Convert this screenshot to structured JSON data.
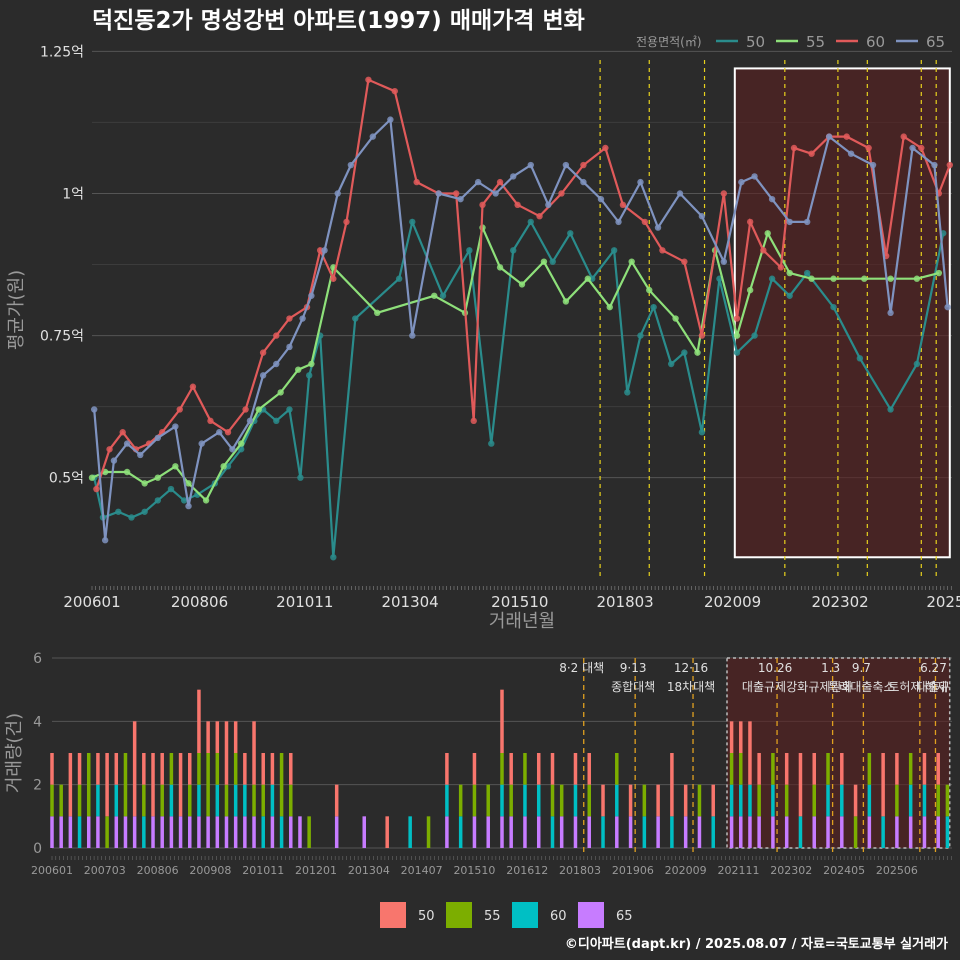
{
  "colors": {
    "bg": "#2b2b2b",
    "grid": "#555555",
    "minorgrid": "#3c3c3c",
    "s50": "#2a8c8c",
    "s55": "#8ee07a",
    "s60": "#e05a5a",
    "s65": "#7f93c0",
    "b50": "#f8766d",
    "b55": "#7cae00",
    "b60": "#00bfc4",
    "b65": "#c77cff",
    "policy": "#e8d21d",
    "policy2": "#e0a020",
    "highlight": "#5a1f1f",
    "text": "#e0e0e0",
    "muted": "#999999"
  },
  "title": "덕진동2가 명성강변 아파트(1997) 매매가격 변화",
  "footer": "©디아파트(dapt.kr) / 2025.08.07 / 자료=국토교통부 실거래가",
  "chart_data": [
    {
      "type": "line",
      "xlabel": "거래년월",
      "ylabel": "평균가(원)",
      "legend_title": "전용면적(㎡)",
      "legend_position": "top-right",
      "x_ticks": [
        "200601",
        "200806",
        "201011",
        "201304",
        "201510",
        "201803",
        "202009",
        "202302",
        "2025"
      ],
      "y_ticks": [
        "0.5억",
        "0.75억",
        "1억",
        "1.25억"
      ],
      "y_tick_values": [
        0.5,
        0.75,
        1.0,
        1.25
      ],
      "ylim": [
        0.32,
        1.27
      ],
      "xlim": [
        2006.0,
        2025.6
      ],
      "policy_dates": [
        2017.58,
        2018.7,
        2019.96,
        2021.79,
        2023.0,
        2023.67,
        2024.9,
        2025.24
      ],
      "highlight_range": [
        2020.65,
        2025.55,
        0.36,
        1.22
      ],
      "series": [
        {
          "name": "50",
          "x": [
            2006.05,
            2006.25,
            2006.6,
            2006.9,
            2007.2,
            2007.5,
            2007.8,
            2008.1,
            2008.4,
            2008.8,
            2009.1,
            2009.4,
            2009.7,
            2009.9,
            2010.2,
            2010.5,
            2010.75,
            2010.95,
            2011.2,
            2011.5,
            2012.0,
            2013.0,
            2013.3,
            2014.0,
            2014.6,
            2015.1,
            2015.6,
            2016.0,
            2016.5,
            2016.9,
            2017.4,
            2017.9,
            2018.2,
            2018.5,
            2018.8,
            2019.2,
            2019.5,
            2019.9,
            2020.3,
            2020.7,
            2021.1,
            2021.5,
            2021.9,
            2022.3,
            2022.9,
            2023.5,
            2024.2,
            2024.8,
            2025.4
          ],
          "y": [
            0.5,
            0.43,
            0.44,
            0.43,
            0.44,
            0.46,
            0.48,
            0.46,
            0.47,
            0.49,
            0.52,
            0.55,
            0.6,
            0.62,
            0.6,
            0.62,
            0.5,
            0.68,
            0.75,
            0.36,
            0.78,
            0.85,
            0.95,
            0.82,
            0.9,
            0.56,
            0.9,
            0.95,
            0.88,
            0.93,
            0.85,
            0.9,
            0.65,
            0.75,
            0.8,
            0.7,
            0.72,
            0.58,
            0.85,
            0.72,
            0.75,
            0.85,
            0.82,
            0.86,
            0.8,
            0.71,
            0.62,
            0.7,
            0.93
          ]
        },
        {
          "name": "55",
          "x": [
            2006.0,
            2006.3,
            2006.8,
            2007.2,
            2007.5,
            2007.9,
            2008.2,
            2008.6,
            2009.0,
            2009.4,
            2009.8,
            2010.3,
            2010.7,
            2011.0,
            2011.5,
            2012.5,
            2013.8,
            2014.5,
            2014.9,
            2015.3,
            2015.8,
            2016.3,
            2016.8,
            2017.3,
            2017.8,
            2018.3,
            2018.7,
            2019.3,
            2019.8,
            2020.2,
            2020.7,
            2021.0,
            2021.4,
            2021.9,
            2022.4,
            2022.9,
            2023.6,
            2024.2,
            2024.8,
            2025.3
          ],
          "y": [
            0.5,
            0.51,
            0.51,
            0.49,
            0.5,
            0.52,
            0.49,
            0.46,
            0.52,
            0.56,
            0.62,
            0.65,
            0.69,
            0.7,
            0.87,
            0.79,
            0.82,
            0.79,
            0.94,
            0.87,
            0.84,
            0.88,
            0.81,
            0.85,
            0.8,
            0.88,
            0.83,
            0.78,
            0.72,
            0.9,
            0.75,
            0.83,
            0.93,
            0.86,
            0.85,
            0.85,
            0.85,
            0.85,
            0.85,
            0.86
          ]
        },
        {
          "name": "60",
          "x": [
            2006.1,
            2006.4,
            2006.7,
            2007.0,
            2007.3,
            2007.6,
            2008.0,
            2008.3,
            2008.7,
            2009.1,
            2009.5,
            2009.9,
            2010.2,
            2010.5,
            2010.9,
            2011.2,
            2011.5,
            2011.8,
            2012.3,
            2012.9,
            2013.4,
            2013.9,
            2014.3,
            2014.7,
            2014.9,
            2015.3,
            2015.7,
            2016.2,
            2016.7,
            2017.2,
            2017.7,
            2018.1,
            2018.6,
            2019.0,
            2019.5,
            2019.9,
            2020.4,
            2020.7,
            2021.0,
            2021.3,
            2021.7,
            2022.0,
            2022.4,
            2022.8,
            2023.2,
            2023.7,
            2024.1,
            2024.5,
            2024.9,
            2025.3,
            2025.55
          ],
          "y": [
            0.48,
            0.55,
            0.58,
            0.55,
            0.56,
            0.58,
            0.62,
            0.66,
            0.6,
            0.58,
            0.62,
            0.72,
            0.75,
            0.78,
            0.8,
            0.9,
            0.85,
            0.95,
            1.2,
            1.18,
            1.02,
            1.0,
            1.0,
            0.6,
            0.98,
            1.02,
            0.98,
            0.96,
            1.0,
            1.05,
            1.08,
            0.98,
            0.95,
            0.9,
            0.88,
            0.75,
            1.0,
            0.78,
            0.95,
            0.9,
            0.87,
            1.08,
            1.07,
            1.1,
            1.1,
            1.08,
            0.89,
            1.1,
            1.08,
            1.0,
            1.05
          ]
        },
        {
          "name": "65",
          "x": [
            2006.05,
            2006.3,
            2006.5,
            2006.8,
            2007.1,
            2007.5,
            2007.9,
            2008.2,
            2008.5,
            2008.9,
            2009.2,
            2009.6,
            2009.9,
            2010.2,
            2010.5,
            2010.8,
            2011.0,
            2011.3,
            2011.6,
            2011.9,
            2012.4,
            2012.8,
            2013.3,
            2013.9,
            2014.4,
            2014.8,
            2015.2,
            2015.6,
            2016.0,
            2016.4,
            2016.8,
            2017.2,
            2017.6,
            2018.0,
            2018.5,
            2018.9,
            2019.4,
            2019.9,
            2020.4,
            2020.8,
            2021.1,
            2021.5,
            2021.9,
            2022.3,
            2022.8,
            2023.3,
            2023.8,
            2024.2,
            2024.7,
            2025.2,
            2025.5
          ],
          "y": [
            0.62,
            0.39,
            0.53,
            0.56,
            0.54,
            0.57,
            0.59,
            0.45,
            0.56,
            0.58,
            0.55,
            0.6,
            0.68,
            0.7,
            0.73,
            0.78,
            0.82,
            0.9,
            1.0,
            1.05,
            1.1,
            1.13,
            0.75,
            1.0,
            0.99,
            1.02,
            1.0,
            1.03,
            1.05,
            0.98,
            1.05,
            1.02,
            0.99,
            0.95,
            1.02,
            0.94,
            1.0,
            0.96,
            0.88,
            1.02,
            1.03,
            0.99,
            0.95,
            0.95,
            1.1,
            1.07,
            1.05,
            0.79,
            1.08,
            1.05,
            0.8
          ]
        }
      ]
    },
    {
      "type": "bar",
      "xlabel": "",
      "ylabel": "거래량(건)",
      "x_ticks": [
        "200601",
        "200703",
        "200806",
        "200908",
        "201011",
        "201201",
        "201304",
        "201407",
        "201510",
        "201612",
        "201803",
        "201906",
        "202009",
        "202111",
        "202302",
        "202405",
        "202506"
      ],
      "y_ticks": [
        "0",
        "2",
        "4",
        "6"
      ],
      "ylim": [
        0,
        6
      ],
      "xlim": [
        2006.0,
        2025.6
      ],
      "legend": [
        "50",
        "55",
        "60",
        "65"
      ],
      "legend_position": "bottom",
      "policies": [
        {
          "date": 2017.58,
          "label1": "8·2 대책",
          "label2": ""
        },
        {
          "date": 2018.7,
          "label1": "9·13",
          "label2": "종합대책"
        },
        {
          "date": 2019.96,
          "label1": "12·16",
          "label2": "18차대책"
        },
        {
          "date": 2021.79,
          "label1": "10.26",
          "label2": "대출규제강화"
        },
        {
          "date": 2023.0,
          "label1": "1.3",
          "label2": "규제완화"
        },
        {
          "date": 2023.67,
          "label1": "9.7",
          "label2": "특례대출축소"
        },
        {
          "date": 2024.9,
          "label1": "",
          "label2": "토허제 해제"
        },
        {
          "date": 2025.24,
          "label1": "6.27",
          "label2": "대출규"
        }
      ],
      "highlight_range": [
        2020.7,
        2025.55
      ],
      "stacks": [
        [
          2006.0,
          1,
          1,
          0,
          1
        ],
        [
          2006.2,
          0,
          1,
          0,
          1
        ],
        [
          2006.4,
          2,
          0,
          0,
          1
        ],
        [
          2006.6,
          1,
          1,
          1,
          0
        ],
        [
          2006.8,
          0,
          2,
          0,
          1
        ],
        [
          2007.0,
          1,
          0,
          1,
          1
        ],
        [
          2007.2,
          2,
          1,
          0,
          0
        ],
        [
          2007.4,
          1,
          0,
          1,
          1
        ],
        [
          2007.6,
          0,
          2,
          0,
          1
        ],
        [
          2007.8,
          3,
          0,
          0,
          1
        ],
        [
          2008.0,
          1,
          1,
          1,
          0
        ],
        [
          2008.2,
          2,
          0,
          0,
          1
        ],
        [
          2008.4,
          1,
          1,
          0,
          1
        ],
        [
          2008.6,
          0,
          1,
          1,
          1
        ],
        [
          2008.8,
          2,
          0,
          0,
          1
        ],
        [
          2009.0,
          1,
          1,
          0,
          1
        ],
        [
          2009.2,
          2,
          1,
          1,
          1
        ],
        [
          2009.4,
          1,
          2,
          0,
          1
        ],
        [
          2009.6,
          1,
          1,
          1,
          1
        ],
        [
          2009.8,
          2,
          1,
          0,
          1
        ],
        [
          2010.0,
          1,
          1,
          1,
          1
        ],
        [
          2010.2,
          1,
          0,
          1,
          1
        ],
        [
          2010.4,
          2,
          1,
          0,
          1
        ],
        [
          2010.6,
          1,
          1,
          1,
          0
        ],
        [
          2010.8,
          1,
          0,
          1,
          1
        ],
        [
          2011.0,
          0,
          2,
          1,
          0
        ],
        [
          2011.2,
          1,
          1,
          0,
          1
        ],
        [
          2011.4,
          0,
          0,
          0,
          1
        ],
        [
          2011.6,
          0,
          1,
          0,
          0
        ],
        [
          2012.2,
          1,
          0,
          0,
          1
        ],
        [
          2012.8,
          0,
          0,
          0,
          1
        ],
        [
          2013.3,
          1,
          0,
          0,
          0
        ],
        [
          2013.8,
          0,
          0,
          1,
          0
        ],
        [
          2014.2,
          0,
          1,
          0,
          0
        ],
        [
          2014.6,
          1,
          0,
          1,
          1
        ],
        [
          2014.9,
          0,
          1,
          1,
          0
        ],
        [
          2015.2,
          1,
          1,
          0,
          1
        ],
        [
          2015.5,
          0,
          1,
          0,
          1
        ],
        [
          2015.8,
          2,
          1,
          1,
          1
        ],
        [
          2016.0,
          1,
          1,
          0,
          1
        ],
        [
          2016.3,
          0,
          1,
          1,
          1
        ],
        [
          2016.6,
          1,
          0,
          1,
          1
        ],
        [
          2016.9,
          1,
          1,
          1,
          0
        ],
        [
          2017.1,
          0,
          1,
          0,
          1
        ],
        [
          2017.4,
          1,
          0,
          1,
          1
        ],
        [
          2017.7,
          1,
          1,
          0,
          1
        ],
        [
          2018.0,
          1,
          0,
          1,
          0
        ],
        [
          2018.3,
          0,
          1,
          1,
          1
        ],
        [
          2018.6,
          1,
          0,
          0,
          1
        ],
        [
          2018.9,
          0,
          1,
          1,
          0
        ],
        [
          2019.2,
          1,
          0,
          0,
          1
        ],
        [
          2019.5,
          2,
          0,
          1,
          0
        ],
        [
          2019.8,
          1,
          0,
          0,
          1
        ],
        [
          2020.1,
          0,
          1,
          0,
          1
        ],
        [
          2020.4,
          1,
          0,
          1,
          0
        ],
        [
          2020.8,
          1,
          1,
          1,
          1
        ],
        [
          2021.0,
          1,
          1,
          1,
          1
        ],
        [
          2021.2,
          2,
          0,
          1,
          1
        ],
        [
          2021.4,
          1,
          1,
          0,
          1
        ],
        [
          2021.7,
          0,
          1,
          1,
          1
        ],
        [
          2022.0,
          1,
          1,
          0,
          1
        ],
        [
          2022.3,
          2,
          0,
          1,
          0
        ],
        [
          2022.6,
          1,
          1,
          0,
          1
        ],
        [
          2022.9,
          0,
          1,
          1,
          1
        ],
        [
          2023.2,
          1,
          0,
          1,
          1
        ],
        [
          2023.5,
          1,
          1,
          0,
          0
        ],
        [
          2023.8,
          0,
          1,
          1,
          1
        ],
        [
          2024.1,
          2,
          0,
          1,
          0
        ],
        [
          2024.4,
          1,
          1,
          0,
          1
        ],
        [
          2024.7,
          0,
          1,
          1,
          1
        ],
        [
          2025.0,
          1,
          0,
          1,
          1
        ],
        [
          2025.3,
          1,
          1,
          0,
          1
        ],
        [
          2025.5,
          0,
          1,
          1,
          0
        ]
      ]
    }
  ]
}
